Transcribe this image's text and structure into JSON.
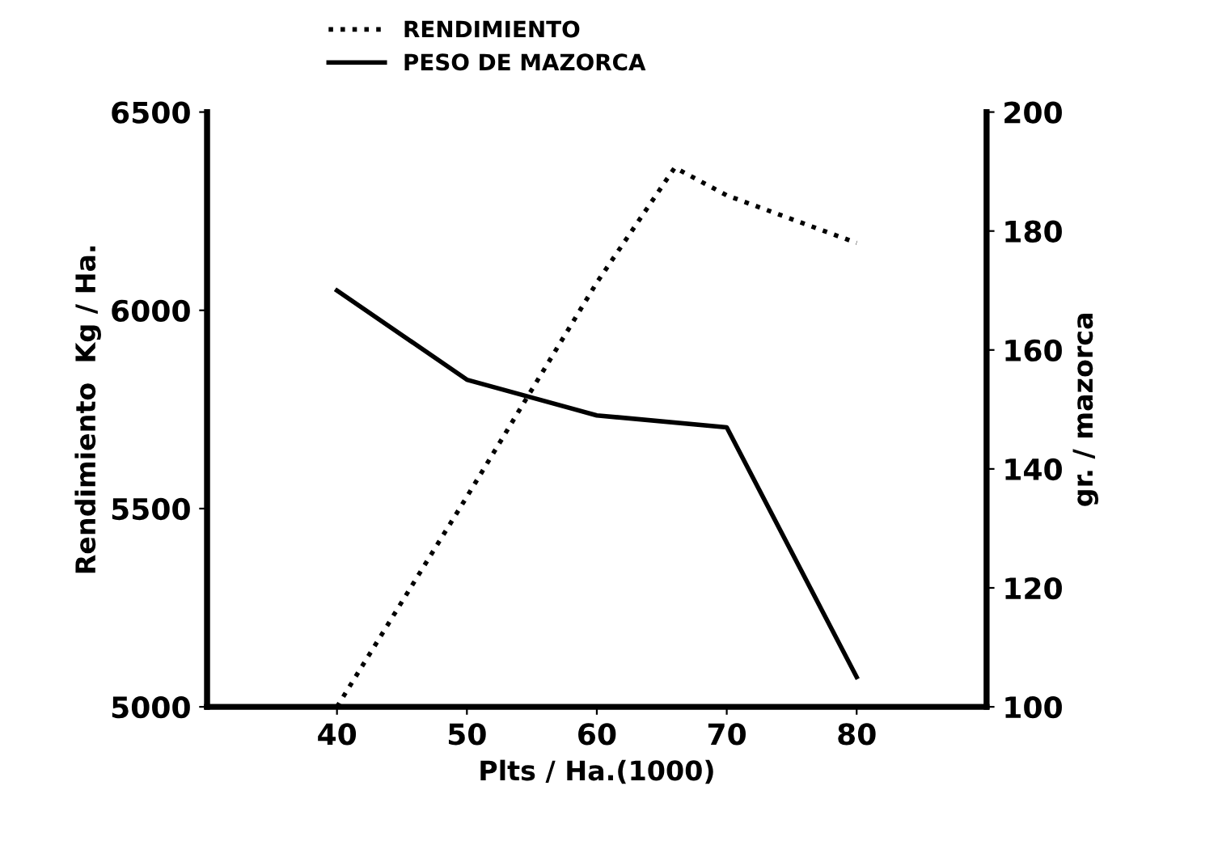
{
  "chart_data": {
    "type": "line",
    "xlabel": "Plts / Ha.(1000)",
    "ylabel": "Rendimiento  Kg / Ha.",
    "y2label": "gr. / mazorca",
    "xlim": [
      30,
      90
    ],
    "xticks": [
      40,
      50,
      60,
      70,
      80
    ],
    "ylim": [
      5000,
      6500
    ],
    "yticks": [
      5000,
      5500,
      6000,
      6500
    ],
    "y2lim": [
      100,
      200
    ],
    "y2ticks": [
      100,
      120,
      140,
      160,
      180,
      200
    ],
    "legend": "top",
    "grid": false,
    "marker": "none",
    "series": [
      {
        "name": "RENDIMIENTO",
        "color": "#000000",
        "line_style": "dotted",
        "x": [
          40,
          50,
          60,
          66,
          70,
          80
        ],
        "values": [
          5000,
          5530,
          6070,
          6360,
          6290,
          6170
        ]
      },
      {
        "name": "PESO DE MAZORCA",
        "color": "#000000",
        "line_style": "solid",
        "axis": "y2",
        "x": [
          40,
          50,
          60,
          70,
          80
        ],
        "values": [
          170,
          155,
          149,
          147,
          105
        ]
      }
    ]
  }
}
